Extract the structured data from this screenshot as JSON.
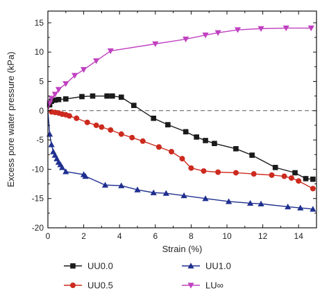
{
  "chart_data": {
    "type": "line",
    "xlabel": "Strain (%)",
    "ylabel": "Excess pore water pressure (kPa)",
    "xlim": [
      0,
      15
    ],
    "ylim": [
      -20,
      17
    ],
    "xticks": [
      0,
      2,
      4,
      6,
      8,
      10,
      12,
      14
    ],
    "yticks": [
      -20,
      -15,
      -10,
      -5,
      0,
      5,
      10,
      15
    ],
    "zero_line": {
      "y": 0,
      "style": "dashed"
    },
    "legend_position": "bottom",
    "series": [
      {
        "name": "UU0.0",
        "color": "#1a1a1a",
        "marker": "square",
        "x": [
          0,
          0.1,
          0.2,
          0.4,
          0.6,
          1.0,
          1.9,
          2.5,
          3.3,
          3.6,
          4.1,
          4.8,
          5.9,
          6.7,
          7.7,
          8.3,
          8.8,
          9.3,
          10.5,
          11.4,
          12.7,
          13.8,
          14.4,
          14.8
        ],
        "y": [
          0,
          1.0,
          1.6,
          1.8,
          1.9,
          2.0,
          2.4,
          2.5,
          2.5,
          2.5,
          2.3,
          0.9,
          -1.3,
          -2.4,
          -3.6,
          -4.5,
          -5.1,
          -5.6,
          -6.5,
          -7.6,
          -9.7,
          -10.6,
          -11.6,
          -11.7
        ]
      },
      {
        "name": "UU0.5",
        "color": "#cc2a1e",
        "marker": "circle",
        "x": [
          0,
          0.2,
          0.4,
          0.6,
          0.8,
          1.0,
          1.2,
          1.6,
          2.2,
          2.7,
          3.0,
          3.5,
          4.1,
          4.7,
          5.3,
          6.2,
          6.9,
          7.5,
          8.0,
          8.7,
          9.5,
          10.5,
          11.5,
          12.5,
          13.2,
          13.6,
          14.0,
          14.8
        ],
        "y": [
          0,
          -0.2,
          -0.3,
          -0.4,
          -0.6,
          -0.7,
          -0.9,
          -1.3,
          -2.0,
          -2.5,
          -2.8,
          -3.3,
          -4.0,
          -4.6,
          -5.2,
          -6.2,
          -7.0,
          -8.2,
          -9.8,
          -10.3,
          -10.5,
          -10.6,
          -10.8,
          -11.0,
          -11.2,
          -11.5,
          -12.0,
          -13.3
        ]
      },
      {
        "name": "UU1.0",
        "color": "#1f2f8f",
        "marker": "triangle-up",
        "x": [
          0,
          0.1,
          0.2,
          0.3,
          0.4,
          0.5,
          0.6,
          0.7,
          0.8,
          1.0,
          2.0,
          2.1,
          3.2,
          4.1,
          5.0,
          5.9,
          6.6,
          7.6,
          8.8,
          10.1,
          11.3,
          11.9,
          13.4,
          14.1,
          14.8
        ],
        "y": [
          0,
          -4.0,
          -5.8,
          -7.0,
          -7.6,
          -8.2,
          -8.8,
          -9.2,
          -9.7,
          -10.4,
          -10.9,
          -11.2,
          -12.7,
          -12.8,
          -13.5,
          -14.0,
          -14.1,
          -14.5,
          -15.0,
          -15.5,
          -15.8,
          -15.9,
          -16.4,
          -16.6,
          -16.8
        ]
      },
      {
        "name": "LU∞",
        "color": "#c040c0",
        "marker": "triangle-down",
        "x": [
          0,
          0.1,
          0.2,
          0.4,
          0.6,
          1.0,
          1.5,
          2.0,
          2.7,
          3.5,
          6.0,
          7.7,
          8.8,
          9.5,
          10.6,
          11.9,
          13.3,
          14.7
        ],
        "y": [
          0,
          1.3,
          2.1,
          2.8,
          3.6,
          4.6,
          6.0,
          7.0,
          8.5,
          10.2,
          11.4,
          12.2,
          12.9,
          13.3,
          13.8,
          14.0,
          14.1,
          14.1
        ]
      }
    ]
  }
}
